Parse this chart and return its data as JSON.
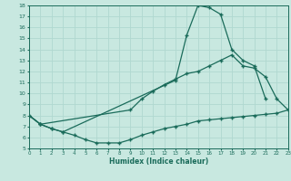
{
  "xlabel": "Humidex (Indice chaleur)",
  "bg_color": "#c8e8e0",
  "grid_color": "#b0d8d0",
  "line_color": "#1a6b5a",
  "xlim": [
    0,
    23
  ],
  "ylim": [
    5,
    18
  ],
  "xticks": [
    0,
    1,
    2,
    3,
    4,
    5,
    6,
    7,
    8,
    9,
    10,
    11,
    12,
    13,
    14,
    15,
    16,
    17,
    18,
    19,
    20,
    21,
    22,
    23
  ],
  "yticks": [
    5,
    6,
    7,
    8,
    9,
    10,
    11,
    12,
    13,
    14,
    15,
    16,
    17,
    18
  ],
  "curve1_x": [
    0,
    1,
    2,
    3,
    13,
    14,
    15,
    16,
    17,
    18,
    19,
    20,
    21
  ],
  "curve1_y": [
    8.0,
    7.2,
    6.8,
    6.5,
    11.2,
    15.3,
    18.0,
    17.8,
    17.2,
    14.0,
    13.0,
    12.5,
    9.5
  ],
  "curve2_x": [
    0,
    1,
    9,
    10,
    11,
    12,
    13,
    14,
    15,
    16,
    17,
    18,
    19,
    20,
    21,
    22,
    23
  ],
  "curve2_y": [
    8.0,
    7.2,
    8.5,
    9.5,
    10.2,
    10.8,
    11.3,
    11.8,
    12.0,
    12.5,
    13.0,
    13.5,
    12.5,
    12.3,
    11.5,
    9.5,
    8.5
  ],
  "curve3_x": [
    0,
    1,
    2,
    3,
    4,
    5,
    6,
    7,
    8,
    9,
    10,
    11,
    12,
    13,
    14,
    15,
    16,
    17,
    18,
    19,
    20,
    21,
    22,
    23
  ],
  "curve3_y": [
    8.0,
    7.2,
    6.8,
    6.5,
    6.2,
    5.8,
    5.5,
    5.5,
    5.5,
    5.8,
    6.2,
    6.5,
    6.8,
    7.0,
    7.2,
    7.5,
    7.6,
    7.7,
    7.8,
    7.9,
    8.0,
    8.1,
    8.2,
    8.5
  ]
}
